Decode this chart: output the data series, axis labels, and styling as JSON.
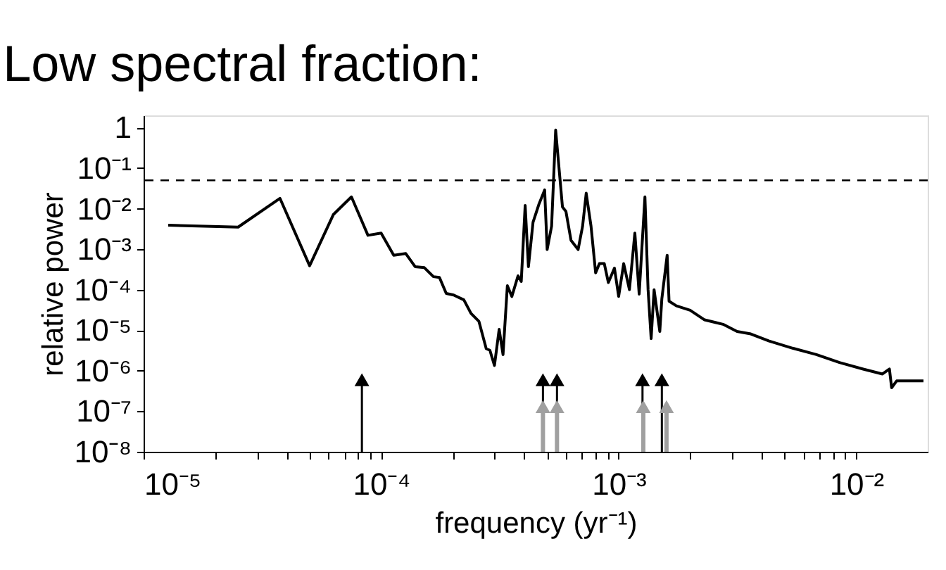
{
  "chart_data": {
    "type": "line",
    "title": "Low spectral fraction:",
    "xlabel": "frequency (yr⁻¹)",
    "ylabel": "relative power",
    "log": "xy",
    "grid": false,
    "xlim": [
      1e-05,
      0.02
    ],
    "ylim": [
      1e-08,
      2
    ],
    "xticks": [
      {
        "value": 1e-05,
        "label": "10⁻⁵"
      },
      {
        "value": 2e-05,
        "label": null
      },
      {
        "value": 3e-05,
        "label": null
      },
      {
        "value": 4e-05,
        "label": null
      },
      {
        "value": 5e-05,
        "label": null
      },
      {
        "value": 6e-05,
        "label": null
      },
      {
        "value": 7e-05,
        "label": null
      },
      {
        "value": 8e-05,
        "label": null
      },
      {
        "value": 9e-05,
        "label": null
      },
      {
        "value": 0.0001,
        "label": "10⁻⁴"
      },
      {
        "value": 0.0002,
        "label": null
      },
      {
        "value": 0.0003,
        "label": null
      },
      {
        "value": 0.0004,
        "label": null
      },
      {
        "value": 0.0005,
        "label": null
      },
      {
        "value": 0.0006,
        "label": null
      },
      {
        "value": 0.0007,
        "label": null
      },
      {
        "value": 0.0008,
        "label": null
      },
      {
        "value": 0.0009,
        "label": null
      },
      {
        "value": 0.001,
        "label": "10⁻³"
      },
      {
        "value": 0.002,
        "label": null
      },
      {
        "value": 0.003,
        "label": null
      },
      {
        "value": 0.004,
        "label": null
      },
      {
        "value": 0.005,
        "label": null
      },
      {
        "value": 0.006,
        "label": null
      },
      {
        "value": 0.007,
        "label": null
      },
      {
        "value": 0.008,
        "label": null
      },
      {
        "value": 0.009,
        "label": null
      },
      {
        "value": 0.01,
        "label": "10⁻²"
      }
    ],
    "yticks": [
      1,
      {
        "value": 0.1,
        "label": "10⁻¹"
      },
      {
        "value": 0.01,
        "label": "10⁻²"
      },
      {
        "value": 0.001,
        "label": "10⁻³"
      },
      {
        "value": 0.0001,
        "label": "10⁻⁴"
      },
      {
        "value": 1e-05,
        "label": "10⁻⁵"
      },
      {
        "value": 1e-06,
        "label": "10⁻⁶"
      },
      {
        "value": 1e-07,
        "label": "10⁻⁷"
      },
      {
        "value": 1e-08,
        "label": "10⁻⁸"
      }
    ],
    "ref_lines": [
      {
        "axis": "y",
        "value": 0.05,
        "label": null,
        "color": "#000000",
        "line_style": "dashed"
      }
    ],
    "series": [
      {
        "color": "#000000",
        "marker": "none",
        "x": [
          1.27e-05,
          2.5e-05,
          3.75e-05,
          5e-05,
          6.3e-05,
          7.5e-05,
          8.8e-05,
          0.0001,
          0.000113,
          0.000127,
          0.000139,
          0.000152,
          0.000166,
          0.000176,
          0.000188,
          0.000202,
          0.000223,
          0.000239,
          0.000258,
          0.000277,
          0.000287,
          0.0003,
          0.000314,
          0.000326,
          0.00034,
          0.000355,
          0.000377,
          0.000389,
          0.000404,
          0.000417,
          0.000436,
          0.000462,
          0.000488,
          0.0005,
          0.000522,
          0.000543,
          0.00058,
          0.0006,
          0.00063,
          0.000675,
          0.000705,
          0.00073,
          0.000765,
          0.0008,
          0.00083,
          0.00087,
          0.000905,
          0.00096,
          0.001,
          0.00105,
          0.00111,
          0.00117,
          0.00122,
          0.00129,
          0.00133,
          0.00137,
          0.00141,
          0.00149,
          0.00152,
          0.0016,
          0.00163,
          0.00175,
          0.002,
          0.0023,
          0.00275,
          0.00315,
          0.0036,
          0.0043,
          0.0054,
          0.0068,
          0.0085,
          0.0107,
          0.0129,
          0.0138,
          0.0141,
          0.0148,
          0.0169,
          0.0192
        ],
        "values": [
          0.0039,
          0.0035,
          0.018,
          0.00039,
          0.0072,
          0.0195,
          0.0022,
          0.0025,
          0.00071,
          0.00078,
          0.00037,
          0.00035,
          0.00021,
          0.0002,
          8.1e-05,
          7.4e-05,
          5.6e-05,
          2.6e-05,
          1.66e-05,
          3.5e-06,
          3.2e-06,
          1.35e-06,
          1.05e-05,
          2.5e-06,
          0.000126,
          6.8e-05,
          0.00022,
          0.00016,
          0.012,
          0.00037,
          0.0046,
          0.013,
          0.029,
          0.00098,
          0.0037,
          0.87,
          0.011,
          0.0085,
          0.00166,
          0.00098,
          0.0037,
          0.024,
          0.0037,
          0.00026,
          0.00044,
          0.00044,
          0.00015,
          0.00034,
          6.8e-05,
          0.00044,
          0.0001,
          0.0025,
          7.8e-05,
          0.0195,
          0.0001,
          6.2e-06,
          0.0001,
          9.3e-06,
          6e-05,
          0.00071,
          5.2e-05,
          4e-05,
          3.1e-05,
          1.8e-05,
          1.4e-05,
          9.3e-06,
          8.1e-06,
          5.4e-06,
          3.6e-06,
          2.5e-06,
          1.6e-06,
          1.1e-06,
          8.3e-07,
          1.1e-06,
          3.8e-07,
          5.6e-07,
          5.6e-07,
          5.6e-07
        ]
      },
      {
        "type": "lollipop",
        "color": "#000000",
        "marker": "triangle",
        "x": [
          8.3e-05,
          0.00048,
          0.00055,
          0.00126,
          0.00152
        ],
        "values": [
          6e-07,
          6e-07,
          6e-07,
          6e-07,
          6e-07
        ]
      },
      {
        "type": "lollipop",
        "color": "#a0a0a0",
        "marker": "triangle",
        "x": [
          0.00048,
          0.00055,
          0.00127,
          0.00159
        ],
        "values": [
          1.3e-07,
          1.3e-07,
          1.3e-07,
          1.3e-07
        ]
      }
    ]
  }
}
